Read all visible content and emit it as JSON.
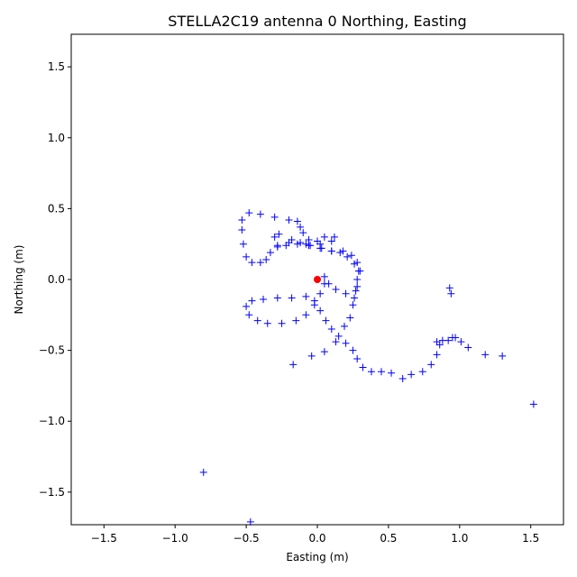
{
  "chart_data": {
    "type": "scatter",
    "title": "STELLA2C19 antenna 0 Northing, Easting",
    "xlabel": "Easting (m)",
    "ylabel": "Northing (m)",
    "xlim": [
      -1.73,
      1.73
    ],
    "ylim": [
      -1.73,
      1.73
    ],
    "xticks": [
      {
        "value": -1.5,
        "label": "−1.5"
      },
      {
        "value": -1,
        "label": "−1.0"
      },
      {
        "value": -0.5,
        "label": "−0.5"
      },
      {
        "value": 0,
        "label": "0.0"
      },
      {
        "value": 0.5,
        "label": "0.5"
      },
      {
        "value": 1,
        "label": "1.0"
      },
      {
        "value": 1.5,
        "label": "1.5"
      }
    ],
    "yticks": [
      {
        "value": -1.5,
        "label": "−1.5"
      },
      {
        "value": -1,
        "label": "−1.0"
      },
      {
        "value": -0.5,
        "label": "−0.5"
      },
      {
        "value": 0,
        "label": "0.0"
      },
      {
        "value": 0.5,
        "label": "0.5"
      },
      {
        "value": 1,
        "label": "1.0"
      },
      {
        "value": 1.5,
        "label": "1.5"
      }
    ],
    "grid": false,
    "series": [
      {
        "color": "#0000ff",
        "marker": "plus",
        "x": [
          0.05,
          0.08,
          0.13,
          0.2,
          0.26,
          0.27,
          0.28,
          0.29,
          0.26,
          0.21,
          0.16,
          0.1,
          0.03,
          -0.05,
          -0.12,
          -0.2,
          -0.28,
          -0.33,
          -0.36,
          -0.4,
          -0.46,
          -0.5,
          -0.52,
          -0.53,
          -0.53,
          -0.48,
          -0.4,
          -0.3,
          -0.2,
          -0.14,
          -0.12,
          -0.1,
          -0.06,
          0,
          0.05,
          0.12,
          0.1,
          0.02,
          -0.08,
          -0.18,
          -0.27,
          -0.3,
          -0.28,
          -0.22,
          -0.14,
          -0.06,
          0.02,
          0.1,
          0.18,
          0.24,
          0.28,
          0.3,
          0.28,
          0.25,
          0.23,
          0.05,
          0.02,
          -0.02,
          -0.08,
          -0.15,
          -0.25,
          -0.35,
          -0.42,
          -0.48,
          -0.5,
          -0.46,
          -0.38,
          -0.28,
          -0.18,
          -0.08,
          -0.02,
          0.02,
          0.06,
          0.1,
          0.15,
          0.2,
          0.25,
          0.28,
          0.32,
          0.38,
          0.45,
          0.52,
          0.6,
          0.66,
          0.74,
          0.8,
          0.84,
          0.86,
          0.88,
          0.92,
          0.84,
          -0.8,
          -0.47,
          -0.17,
          -0.04,
          0.05,
          0.13,
          0.19,
          0.93,
          0.94,
          1.01,
          1.06,
          1.18,
          1.3,
          1.52,
          0.95,
          0.97
        ],
        "values": [
          0.02,
          -0.03,
          -0.07,
          -0.1,
          -0.13,
          -0.08,
          0,
          0.06,
          0.11,
          0.16,
          0.19,
          0.2,
          0.22,
          0.24,
          0.26,
          0.26,
          0.23,
          0.19,
          0.14,
          0.12,
          0.12,
          0.16,
          0.25,
          0.35,
          0.42,
          0.47,
          0.46,
          0.44,
          0.42,
          0.41,
          0.37,
          0.33,
          0.28,
          0.27,
          0.3,
          0.3,
          0.27,
          0.25,
          0.25,
          0.28,
          0.32,
          0.3,
          0.24,
          0.24,
          0.25,
          0.24,
          0.22,
          0.2,
          0.2,
          0.17,
          0.12,
          0.06,
          -0.05,
          -0.18,
          -0.27,
          -0.03,
          -0.1,
          -0.18,
          -0.25,
          -0.29,
          -0.31,
          -0.31,
          -0.29,
          -0.25,
          -0.19,
          -0.15,
          -0.14,
          -0.13,
          -0.13,
          -0.12,
          -0.15,
          -0.22,
          -0.29,
          -0.35,
          -0.4,
          -0.45,
          -0.5,
          -0.56,
          -0.62,
          -0.65,
          -0.65,
          -0.66,
          -0.7,
          -0.67,
          -0.65,
          -0.6,
          -0.53,
          -0.46,
          -0.43,
          -0.43,
          -0.44,
          -1.36,
          -1.71,
          -0.6,
          -0.54,
          -0.51,
          -0.44,
          -0.33,
          -0.06,
          -0.1,
          -0.44,
          -0.48,
          -0.53,
          -0.54,
          -0.88,
          -0.41,
          -0.41
        ]
      },
      {
        "color": "#ff0000",
        "marker": "circle",
        "x": [
          0
        ],
        "values": [
          0
        ]
      }
    ]
  }
}
